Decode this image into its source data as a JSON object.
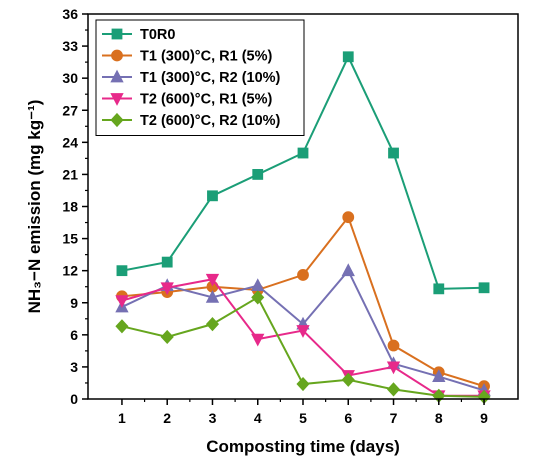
{
  "chart_data": {
    "type": "line",
    "xlabel": "Composting time (days)",
    "ylabel": "NH₃−N emission (mg kg⁻¹)",
    "x": [
      1,
      2,
      3,
      4,
      5,
      6,
      7,
      8,
      9
    ],
    "xlim": [
      0.25,
      9.75
    ],
    "ylim": [
      0,
      36
    ],
    "xticks": [
      1,
      2,
      3,
      4,
      5,
      6,
      7,
      8,
      9
    ],
    "yticks": [
      0,
      3,
      6,
      9,
      12,
      15,
      18,
      21,
      24,
      27,
      30,
      33,
      36
    ],
    "grid": false,
    "legend_position": "top-left",
    "series": [
      {
        "name": "T0R0",
        "color": "#1b9e77",
        "marker": "square",
        "values": [
          12.0,
          12.8,
          19.0,
          21.0,
          23.0,
          32.0,
          23.0,
          10.3,
          10.4
        ]
      },
      {
        "name": "T1 (300)°C, R1 (5%)",
        "color": "#d9701f",
        "marker": "circle",
        "values": [
          9.6,
          10.0,
          10.5,
          10.2,
          11.6,
          17.0,
          5.0,
          2.5,
          1.2
        ]
      },
      {
        "name": "T1 (300)°C, R2 (10%)",
        "color": "#7570b3",
        "marker": "triangle-up",
        "values": [
          8.6,
          10.6,
          9.5,
          10.6,
          7.0,
          12.0,
          3.3,
          2.1,
          0.8
        ]
      },
      {
        "name": "T2 (600)°C, R1 (5%)",
        "color": "#e7298a",
        "marker": "triangle-down",
        "values": [
          9.2,
          10.4,
          11.2,
          5.6,
          6.4,
          2.2,
          3.0,
          0.3,
          0.3
        ]
      },
      {
        "name": "T2 (600)°C, R2 (10%)",
        "color": "#66a61e",
        "marker": "diamond",
        "values": [
          6.8,
          5.8,
          7.0,
          9.5,
          1.4,
          1.8,
          0.9,
          0.3,
          0.2
        ]
      }
    ]
  }
}
